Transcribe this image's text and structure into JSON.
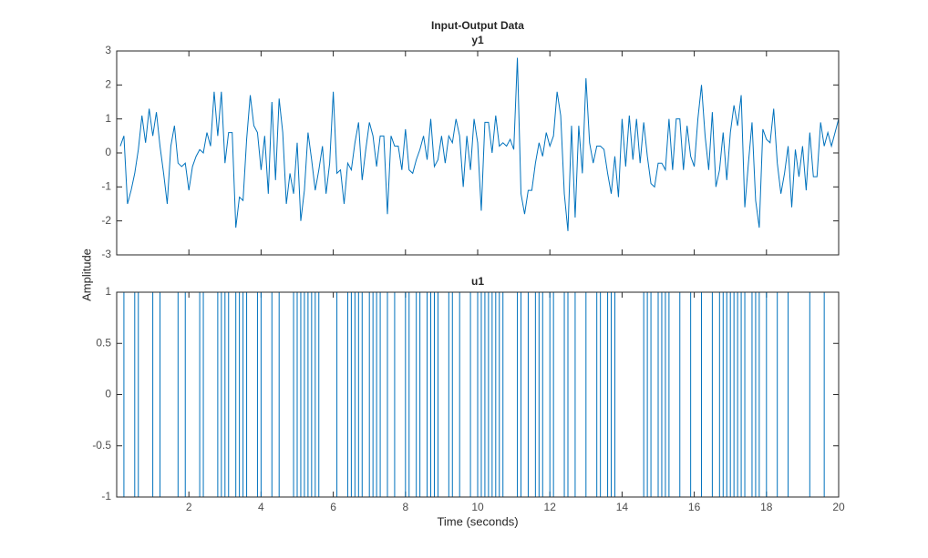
{
  "title": "Input-Output Data",
  "ylabel": "Amplitude",
  "xlabel": "Time (seconds)",
  "chart_data": [
    {
      "type": "line",
      "title": "y1",
      "color": "#0072bd",
      "x": [
        0.1,
        0.2,
        0.3,
        0.4,
        0.5,
        0.6,
        0.7,
        0.8,
        0.9,
        1,
        1.1,
        1.2,
        1.3,
        1.4,
        1.5,
        1.6,
        1.7,
        1.8,
        1.9,
        2,
        2.1,
        2.2,
        2.3,
        2.4,
        2.5,
        2.6,
        2.7,
        2.8,
        2.9,
        3,
        3.1,
        3.2,
        3.3,
        3.4,
        3.5,
        3.6,
        3.7,
        3.8,
        3.9,
        4,
        4.1,
        4.2,
        4.3,
        4.4,
        4.5,
        4.6,
        4.7,
        4.8,
        4.9,
        5,
        5.1,
        5.2,
        5.3,
        5.4,
        5.5,
        5.6,
        5.7,
        5.8,
        5.9,
        6,
        6.1,
        6.2,
        6.3,
        6.4,
        6.5,
        6.6,
        6.7,
        6.8,
        6.9,
        7,
        7.1,
        7.2,
        7.3,
        7.4,
        7.5,
        7.6,
        7.7,
        7.8,
        7.9,
        8,
        8.1,
        8.2,
        8.3,
        8.4,
        8.5,
        8.6,
        8.7,
        8.8,
        8.9,
        9,
        9.1,
        9.2,
        9.3,
        9.4,
        9.5,
        9.6,
        9.7,
        9.8,
        9.9,
        10,
        10.1,
        10.2,
        10.3,
        10.4,
        10.5,
        10.6,
        10.7,
        10.8,
        10.9,
        11,
        11.1,
        11.2,
        11.3,
        11.4,
        11.5,
        11.6,
        11.7,
        11.8,
        11.9,
        12,
        12.1,
        12.2,
        12.3,
        12.4,
        12.5,
        12.6,
        12.7,
        12.8,
        12.9,
        13,
        13.1,
        13.2,
        13.3,
        13.4,
        13.5,
        13.6,
        13.7,
        13.8,
        13.9,
        14,
        14.1,
        14.2,
        14.3,
        14.4,
        14.5,
        14.6,
        14.7,
        14.8,
        14.9,
        15,
        15.1,
        15.2,
        15.3,
        15.4,
        15.5,
        15.6,
        15.7,
        15.8,
        15.9,
        16,
        16.1,
        16.2,
        16.3,
        16.4,
        16.5,
        16.6,
        16.7,
        16.8,
        16.9,
        17,
        17.1,
        17.2,
        17.3,
        17.4,
        17.5,
        17.6,
        17.7,
        17.8,
        17.9,
        18,
        18.1,
        18.2,
        18.3,
        18.4,
        18.5,
        18.6,
        18.7,
        18.8,
        18.9,
        19,
        19.1,
        19.2,
        19.3,
        19.4,
        19.5,
        19.6,
        19.7,
        19.8,
        19.9,
        20
      ],
      "values": [
        0.2,
        0.5,
        -1.5,
        -1.1,
        -0.6,
        0.1,
        1.1,
        0.3,
        1.3,
        0.5,
        1.2,
        0.2,
        -0.6,
        -1.5,
        0.2,
        0.8,
        -0.3,
        -0.4,
        -0.3,
        -1.1,
        -0.4,
        -0.1,
        0.1,
        0.0,
        0.6,
        0.2,
        1.8,
        0.5,
        1.8,
        -0.3,
        0.6,
        0.6,
        -2.2,
        -1.3,
        -1.4,
        0.4,
        1.7,
        0.8,
        0.6,
        -0.5,
        0.5,
        -1.2,
        1.5,
        -0.8,
        1.6,
        0.6,
        -1.5,
        -0.6,
        -1.2,
        0.3,
        -2.0,
        -1.1,
        0.6,
        -0.2,
        -1.1,
        -0.5,
        0.2,
        -1.2,
        -0.3,
        1.8,
        -0.6,
        -0.5,
        -1.5,
        -0.3,
        -0.5,
        0.3,
        0.9,
        -0.8,
        0.1,
        0.9,
        0.5,
        -0.4,
        0.5,
        0.5,
        -1.8,
        0.5,
        0.2,
        0.2,
        -0.5,
        0.7,
        -0.5,
        -0.6,
        -0.2,
        0.1,
        0.5,
        -0.2,
        1.0,
        -0.4,
        -0.2,
        0.5,
        -0.3,
        0.5,
        0.3,
        1.0,
        0.5,
        -1.0,
        0.5,
        -0.5,
        1.0,
        0.3,
        -1.7,
        0.9,
        0.9,
        0.0,
        1.1,
        0.2,
        0.3,
        0.2,
        0.4,
        0.1,
        2.8,
        -1.2,
        -1.8,
        -1.1,
        -1.1,
        -0.3,
        0.3,
        -0.1,
        0.6,
        0.2,
        0.5,
        1.8,
        1.1,
        -1.2,
        -2.3,
        0.8,
        -1.9,
        0.8,
        -0.6,
        2.2,
        0.3,
        -0.3,
        0.2,
        0.2,
        0.1,
        -0.6,
        -1.2,
        -0.1,
        -1.3,
        1.0,
        -0.4,
        1.1,
        -0.2,
        1.0,
        -0.3,
        0.9,
        -0.1,
        -0.9,
        -1.0,
        -0.3,
        -0.3,
        -0.5,
        1.0,
        -0.5,
        1.0,
        1.0,
        -0.5,
        0.8,
        -0.1,
        -0.4,
        1.0,
        2.0,
        0.5,
        -0.5,
        1.2,
        -1.0,
        -0.5,
        0.6,
        -0.8,
        0.6,
        1.4,
        0.8,
        1.7,
        -1.6,
        -0.3,
        0.9,
        -1.4,
        -2.2,
        0.7,
        0.4,
        0.3,
        1.3,
        -0.3,
        -1.2,
        -0.6,
        0.2,
        -1.6,
        0.1,
        -0.7,
        0.2,
        -1.1,
        0.6,
        -0.7,
        -0.7,
        0.9,
        0.2,
        0.6,
        0.2,
        0.6,
        1.0
      ],
      "xlim": [
        0,
        20
      ],
      "xticks": [
        2,
        4,
        6,
        8,
        10,
        12,
        14,
        16,
        18,
        20
      ],
      "ylim": [
        -3,
        3
      ],
      "yticks": [
        -3,
        -2,
        -1,
        0,
        1,
        2,
        3
      ]
    },
    {
      "type": "stairs",
      "title": "u1",
      "color": "#0072bd",
      "x": [
        0.1,
        0.2,
        0.3,
        0.4,
        0.5,
        0.6,
        0.7,
        0.8,
        0.9,
        1,
        1.1,
        1.2,
        1.3,
        1.4,
        1.5,
        1.6,
        1.7,
        1.8,
        1.9,
        2,
        2.1,
        2.2,
        2.3,
        2.4,
        2.5,
        2.6,
        2.7,
        2.8,
        2.9,
        3,
        3.1,
        3.2,
        3.3,
        3.4,
        3.5,
        3.6,
        3.7,
        3.8,
        3.9,
        4,
        4.1,
        4.2,
        4.3,
        4.4,
        4.5,
        4.6,
        4.7,
        4.8,
        4.9,
        5,
        5.1,
        5.2,
        5.3,
        5.4,
        5.5,
        5.6,
        5.7,
        5.8,
        5.9,
        6,
        6.1,
        6.2,
        6.3,
        6.4,
        6.5,
        6.6,
        6.7,
        6.8,
        6.9,
        7,
        7.1,
        7.2,
        7.3,
        7.4,
        7.5,
        7.6,
        7.7,
        7.8,
        7.9,
        8,
        8.1,
        8.2,
        8.3,
        8.4,
        8.5,
        8.6,
        8.7,
        8.8,
        8.9,
        9,
        9.1,
        9.2,
        9.3,
        9.4,
        9.5,
        9.6,
        9.7,
        9.8,
        9.9,
        10,
        10.1,
        10.2,
        10.3,
        10.4,
        10.5,
        10.6,
        10.7,
        10.8,
        10.9,
        11,
        11.1,
        11.2,
        11.3,
        11.4,
        11.5,
        11.6,
        11.7,
        11.8,
        11.9,
        12,
        12.1,
        12.2,
        12.3,
        12.4,
        12.5,
        12.6,
        12.7,
        12.8,
        12.9,
        13,
        13.1,
        13.2,
        13.3,
        13.4,
        13.5,
        13.6,
        13.7,
        13.8,
        13.9,
        14,
        14.1,
        14.2,
        14.3,
        14.4,
        14.5,
        14.6,
        14.7,
        14.8,
        14.9,
        15,
        15.1,
        15.2,
        15.3,
        15.4,
        15.5,
        15.6,
        15.7,
        15.8,
        15.9,
        16,
        16.1,
        16.2,
        16.3,
        16.4,
        16.5,
        16.6,
        16.7,
        16.8,
        16.9,
        17,
        17.1,
        17.2,
        17.3,
        17.4,
        17.5,
        17.6,
        17.7,
        17.8,
        17.9,
        18,
        18.1,
        18.2,
        18.3,
        18.4,
        18.5,
        18.6,
        18.7,
        18.8,
        18.9,
        19,
        19.1,
        19.2,
        19.3,
        19.4,
        19.5,
        19.6,
        19.7,
        19.8,
        19.9,
        20
      ],
      "values": [
        -1,
        1,
        1,
        1,
        -1,
        1,
        1,
        1,
        1,
        -1,
        -1,
        1,
        1,
        1,
        1,
        1,
        -1,
        -1,
        1,
        1,
        1,
        1,
        -1,
        1,
        1,
        1,
        1,
        -1,
        1,
        -1,
        1,
        1,
        -1,
        1,
        -1,
        1,
        1,
        1,
        -1,
        1,
        1,
        1,
        -1,
        -1,
        1,
        1,
        1,
        1,
        -1,
        1,
        -1,
        1,
        -1,
        1,
        -1,
        1,
        1,
        1,
        1,
        1,
        -1,
        -1,
        -1,
        1,
        -1,
        1,
        -1,
        1,
        1,
        -1,
        1,
        -1,
        1,
        1,
        -1,
        -1,
        1,
        1,
        1,
        -1,
        1,
        1,
        -1,
        1,
        1,
        -1,
        1,
        -1,
        1,
        1,
        1,
        -1,
        1,
        1,
        -1,
        -1,
        -1,
        1,
        1,
        -1,
        1,
        -1,
        1,
        -1,
        1,
        -1,
        1,
        1,
        1,
        1,
        -1,
        1,
        1,
        -1,
        -1,
        1,
        -1,
        1,
        1,
        -1,
        1,
        1,
        1,
        -1,
        1,
        1,
        -1,
        -1,
        -1,
        1,
        1,
        1,
        -1,
        1,
        1,
        -1,
        1,
        -1,
        -1,
        -1,
        -1,
        -1,
        -1,
        -1,
        -1,
        1,
        -1,
        1,
        1,
        -1,
        1,
        -1,
        1,
        1,
        1,
        -1,
        -1,
        -1,
        1,
        1,
        1,
        -1,
        -1,
        -1,
        1,
        1,
        -1,
        1,
        -1,
        1,
        -1,
        1,
        -1,
        1,
        1,
        -1,
        1,
        -1,
        -1,
        1,
        1,
        1,
        -1,
        -1,
        -1,
        1,
        1,
        1,
        1,
        1,
        1,
        -1,
        -1,
        -1,
        -1,
        1,
        1,
        1,
        1,
        -1
      ],
      "xlim": [
        0,
        20
      ],
      "xticks": [
        2,
        4,
        6,
        8,
        10,
        12,
        14,
        16,
        18,
        20
      ],
      "ylim": [
        -1,
        1
      ],
      "yticks": [
        -1,
        -0.5,
        0,
        0.5,
        1
      ]
    }
  ]
}
